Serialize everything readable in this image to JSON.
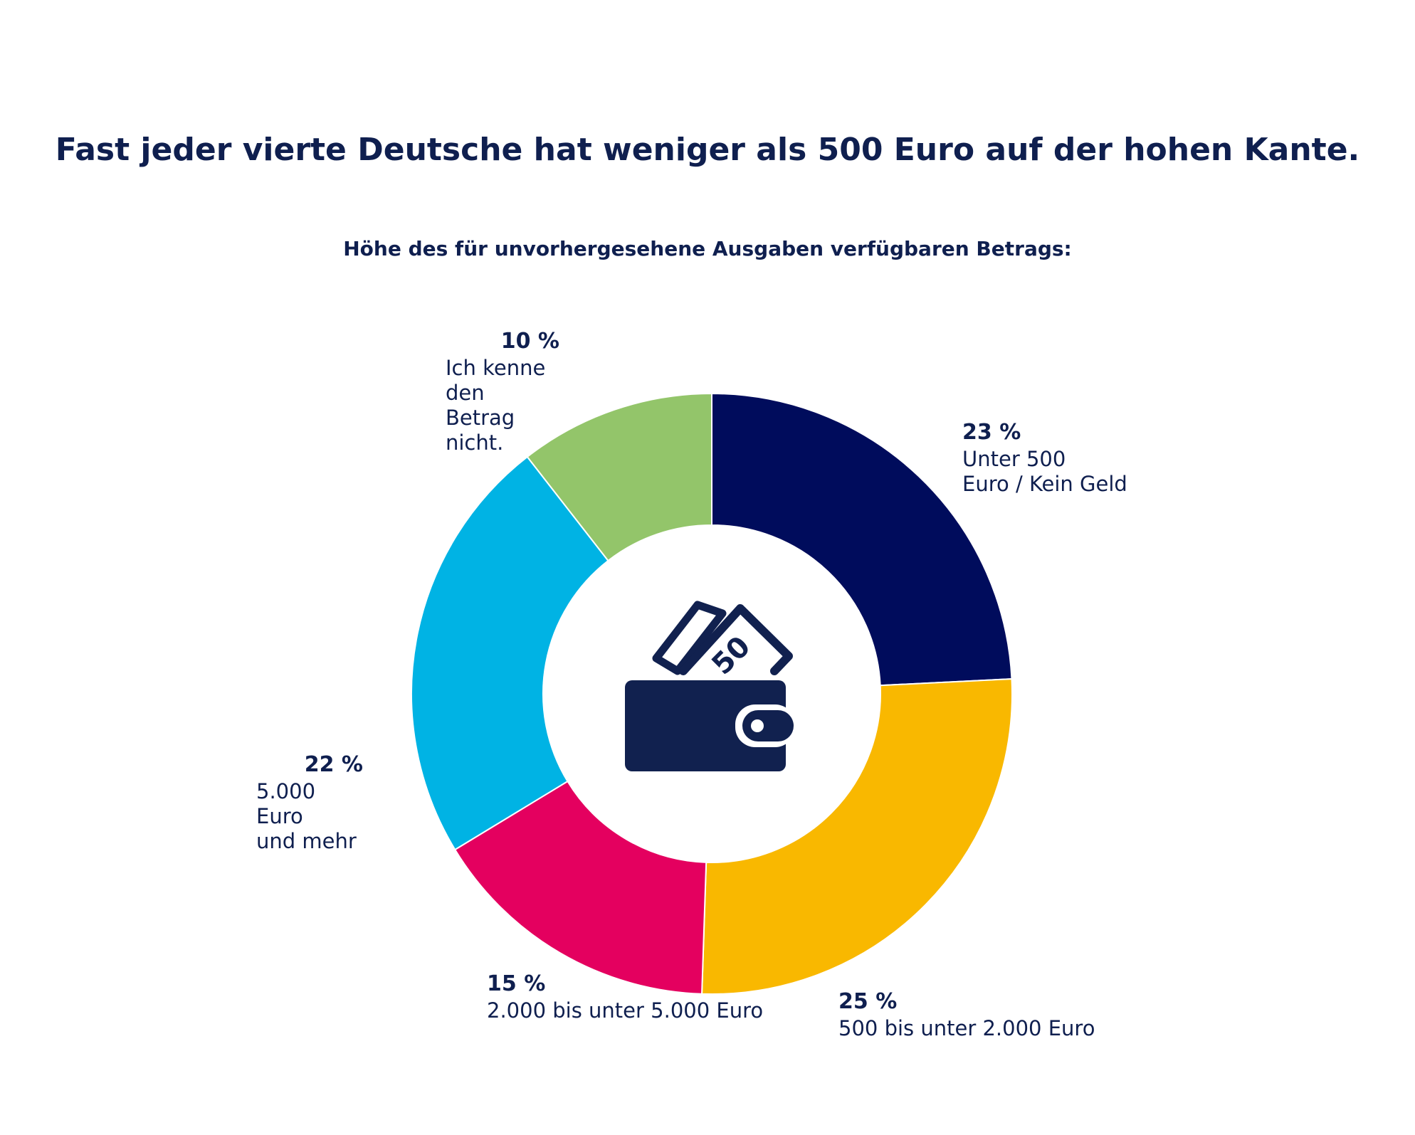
{
  "chart_data": {
    "type": "pie",
    "variant": "donut",
    "title": "Fast jeder vierte Deutsche hat weniger als 500 Euro auf der hohen Kante.",
    "subtitle": "Höhe des für unvorhergesehene Ausgaben verfügbaren Betrags:",
    "slices": [
      {
        "value": 23,
        "percent_label": "23 %",
        "label": "Unter 500\nEuro / Kein Geld",
        "color": "#000c5c"
      },
      {
        "value": 25,
        "percent_label": "25 %",
        "label": "500 bis unter 2.000 Euro",
        "color": "#f9b800"
      },
      {
        "value": 15,
        "percent_label": "15 %",
        "label": "2.000 bis unter 5.000 Euro",
        "color": "#e4005f"
      },
      {
        "value": 22,
        "percent_label": "22 %",
        "label": "5.000 Euro\nund mehr",
        "color": "#00b3e4"
      },
      {
        "value": 10,
        "percent_label": "10 %",
        "label": "Ich kenne\nden Betrag\nnicht.",
        "color": "#93c56a"
      }
    ],
    "center_icon": "wallet-with-50-note-icon",
    "label_color": "#0f1f4f"
  }
}
